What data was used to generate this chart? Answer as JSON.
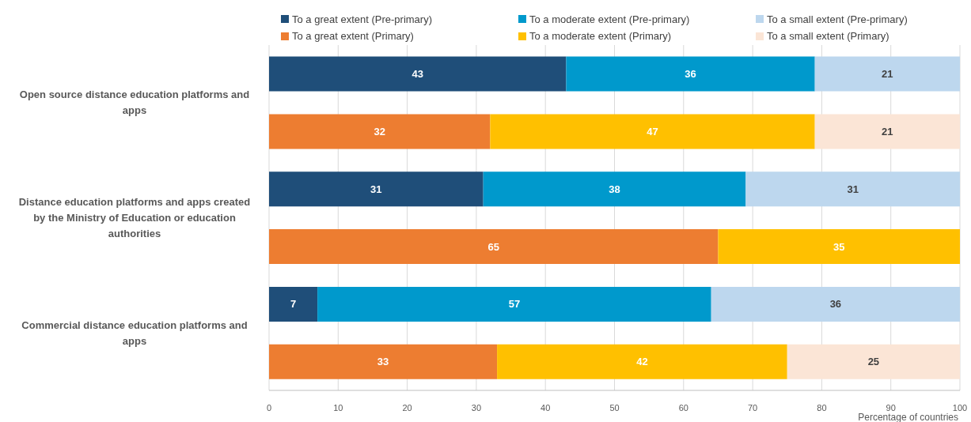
{
  "chart_data": {
    "type": "bar",
    "orientation": "horizontal",
    "stacked": true,
    "categories": [
      "Open source distance education platforms and apps",
      null,
      "Distance education platforms and apps created by the Ministry of Education or education authorities",
      null,
      "Commercial distance education platforms and apps",
      null
    ],
    "series": [
      {
        "name": "To a great extent (Pre-primary)",
        "color": "#1f4e79",
        "values": [
          43,
          null,
          31,
          null,
          7,
          null
        ]
      },
      {
        "name": "To a moderate extent (Pre-primary)",
        "color": "#0099cc",
        "values": [
          36,
          null,
          38,
          null,
          57,
          null
        ]
      },
      {
        "name": "To a small extent (Pre-primary)",
        "color": "#bdd7ee",
        "values": [
          21,
          null,
          31,
          null,
          36,
          null
        ]
      },
      {
        "name": "To a great extent (Primary)",
        "color": "#ed7d31",
        "values": [
          null,
          32,
          null,
          65,
          null,
          33
        ]
      },
      {
        "name": "To a moderate extent (Primary)",
        "color": "#ffc000",
        "values": [
          null,
          47,
          null,
          35,
          null,
          42
        ]
      },
      {
        "name": "To a small extent (Primary)",
        "color": "#fbe5d6",
        "values": [
          null,
          21,
          null,
          null,
          null,
          25
        ]
      }
    ],
    "xlim": [
      0,
      100
    ],
    "xticks": [
      0,
      10,
      20,
      30,
      40,
      50,
      60,
      70,
      80,
      90,
      100
    ],
    "xlabel": "Percentage of countries",
    "grid": "x",
    "legend": "top",
    "data_labels": true
  }
}
